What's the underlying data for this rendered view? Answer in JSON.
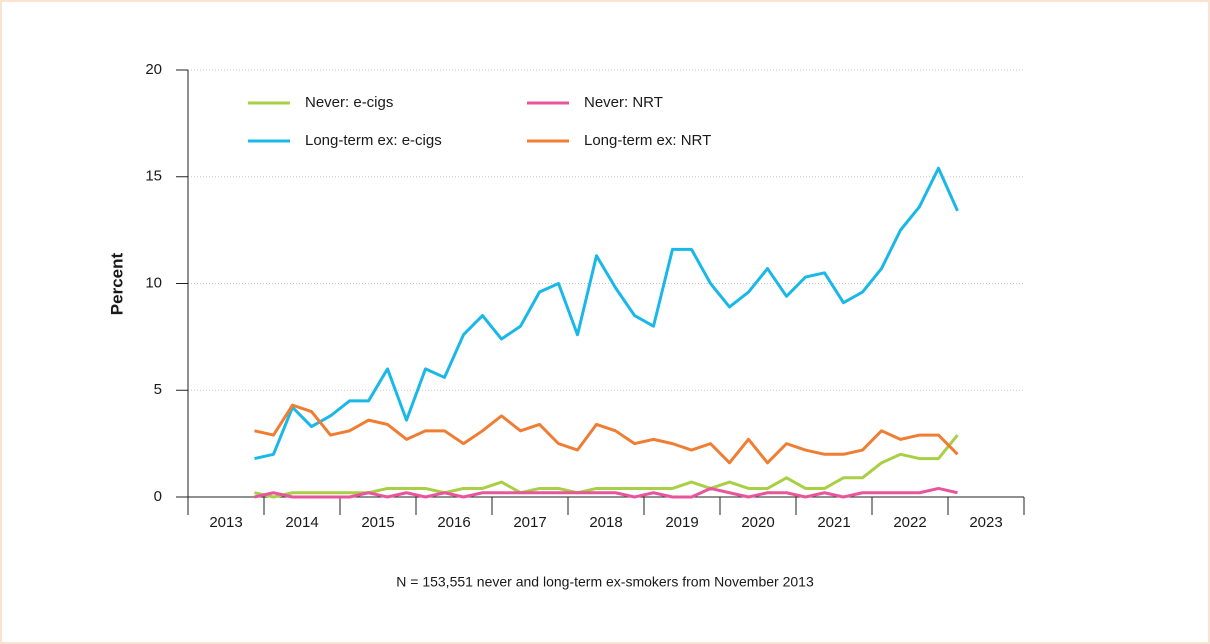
{
  "chart_data": {
    "type": "line",
    "y_label": "Percent",
    "footnote": "N = 153,551 never and long-term ex-smokers from November 2013",
    "categories": [
      "2013",
      "2014",
      "2015",
      "2016",
      "2017",
      "2018",
      "2019",
      "2020",
      "2021",
      "2022",
      "2023"
    ],
    "x": [
      2013.875,
      2014.125,
      2014.375,
      2014.625,
      2014.875,
      2015.125,
      2015.375,
      2015.625,
      2015.875,
      2016.125,
      2016.375,
      2016.625,
      2016.875,
      2017.125,
      2017.375,
      2017.625,
      2017.875,
      2018.125,
      2018.375,
      2018.625,
      2018.875,
      2019.125,
      2019.375,
      2019.625,
      2019.875,
      2020.125,
      2020.375,
      2020.625,
      2020.875,
      2021.125,
      2021.375,
      2021.625,
      2021.875,
      2022.125,
      2022.375,
      2022.625,
      2022.875,
      2023.125
    ],
    "xlim": [
      2013,
      2024
    ],
    "xticks": [
      2013,
      2014,
      2015,
      2016,
      2017,
      2018,
      2019,
      2020,
      2021,
      2022,
      2023,
      2024
    ],
    "ylim": [
      0,
      20
    ],
    "yticks": [
      0,
      5,
      10,
      15,
      20
    ],
    "grid": true,
    "legend": "top-left",
    "series": [
      {
        "name": "Never: e-cigs",
        "color": "#a8cf45",
        "values": [
          0.2,
          0.0,
          0.2,
          0.2,
          0.2,
          0.2,
          0.2,
          0.4,
          0.4,
          0.4,
          0.2,
          0.4,
          0.4,
          0.7,
          0.2,
          0.4,
          0.4,
          0.2,
          0.4,
          0.4,
          0.4,
          0.4,
          0.4,
          0.7,
          0.4,
          0.7,
          0.4,
          0.4,
          0.9,
          0.4,
          0.4,
          0.9,
          0.9,
          1.6,
          2.0,
          1.8,
          1.8,
          2.9
        ]
      },
      {
        "name": "Never: NRT",
        "color": "#e8559b",
        "values": [
          0.0,
          0.2,
          0.0,
          0.0,
          0.0,
          0.0,
          0.2,
          0.0,
          0.2,
          0.0,
          0.2,
          0.0,
          0.2,
          0.2,
          0.2,
          0.2,
          0.2,
          0.2,
          0.2,
          0.2,
          0.0,
          0.2,
          0.0,
          0.0,
          0.4,
          0.2,
          0.0,
          0.2,
          0.2,
          0.0,
          0.2,
          0.0,
          0.2,
          0.2,
          0.2,
          0.2,
          0.4,
          0.2
        ]
      },
      {
        "name": "Long-term ex: e-cigs",
        "color": "#1ab8e8",
        "values": [
          1.8,
          2.0,
          4.2,
          3.3,
          3.8,
          4.5,
          4.5,
          6.0,
          3.6,
          6.0,
          5.6,
          7.6,
          8.5,
          7.4,
          8.0,
          9.6,
          10.0,
          7.6,
          11.3,
          9.8,
          8.5,
          8.0,
          11.6,
          11.6,
          10.0,
          8.9,
          9.6,
          10.7,
          9.4,
          10.3,
          10.5,
          9.1,
          9.6,
          10.7,
          12.5,
          13.6,
          15.4,
          13.4
        ]
      },
      {
        "name": "Long-term ex: NRT",
        "color": "#ef7d33",
        "values": [
          3.1,
          2.9,
          4.3,
          4.0,
          2.9,
          3.1,
          3.6,
          3.4,
          2.7,
          3.1,
          3.1,
          2.5,
          3.1,
          3.8,
          3.1,
          3.4,
          2.5,
          2.2,
          3.4,
          3.1,
          2.5,
          2.7,
          2.5,
          2.2,
          2.5,
          1.6,
          2.7,
          1.6,
          2.5,
          2.2,
          2.0,
          2.0,
          2.2,
          3.1,
          2.7,
          2.9,
          2.9,
          2.0
        ]
      }
    ]
  }
}
